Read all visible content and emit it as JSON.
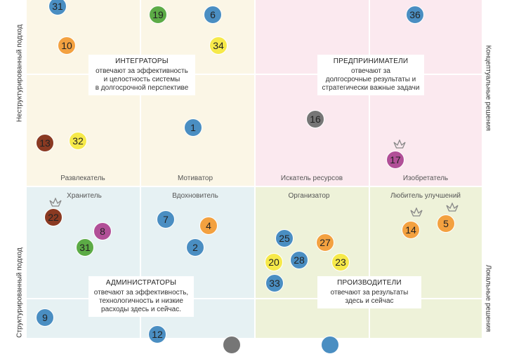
{
  "axes": {
    "top_left": "Неструктурированный подход",
    "bottom_left": "Структурированный подход",
    "top_right": "Концептуальные решения",
    "bottom_right": "Локальные решения"
  },
  "quadrants": {
    "integrators": {
      "title": "ИНТЕГРАТОРЫ",
      "line1": "отвечают за эффективность",
      "line2": "и целостность системы",
      "line3": "в долгосрочной перспективе",
      "sub_left": "Развлекатель",
      "sub_right": "Мотиватор"
    },
    "entrepreneurs": {
      "title": "ПРЕДПРИНИМАТЕЛИ",
      "line1": "отвечают за",
      "line2": "долгосрочные результаты и",
      "line3": "стратегически важные задачи",
      "sub_left": "Искатель ресурсов",
      "sub_right": "Изобретатель"
    },
    "administrators": {
      "title": "АДМИНИСТРАТОРЫ",
      "line1": "отвечают за эффективность,",
      "line2": "технологичность и низкие",
      "line3": "расходы здесь и сейчас.",
      "sub_left": "Хранитель",
      "sub_right": "Вдохновитель"
    },
    "producers": {
      "title": "ПРОИЗВОДИТЕЛИ",
      "line1": "отвечают за результаты",
      "line2": "здесь и сейчас",
      "sub_left": "Организатор",
      "sub_right": "Любитель улучшений"
    }
  },
  "colors": {
    "blue": "#4a8ec2",
    "orange": "#f3a140",
    "green": "#5cab46",
    "yellow": "#f6e94a",
    "purple": "#b14f97",
    "brown": "#8a3a22",
    "gray": "#767676"
  },
  "dots": [
    {
      "label": "31",
      "color": "blue"
    },
    {
      "label": "19",
      "color": "green"
    },
    {
      "label": "6",
      "color": "blue"
    },
    {
      "label": "10",
      "color": "orange"
    },
    {
      "label": "34",
      "color": "yellow"
    },
    {
      "label": "1",
      "color": "blue"
    },
    {
      "label": "13",
      "color": "brown"
    },
    {
      "label": "32",
      "color": "yellow"
    },
    {
      "label": "36",
      "color": "blue"
    },
    {
      "label": "16",
      "color": "gray"
    },
    {
      "label": "17",
      "color": "purple"
    },
    {
      "label": "22",
      "color": "brown"
    },
    {
      "label": "8",
      "color": "purple"
    },
    {
      "label": "31",
      "color": "green"
    },
    {
      "label": "7",
      "color": "blue"
    },
    {
      "label": "4",
      "color": "orange"
    },
    {
      "label": "2",
      "color": "blue"
    },
    {
      "label": "9",
      "color": "blue"
    },
    {
      "label": "12",
      "color": "blue"
    },
    {
      "label": "25",
      "color": "blue"
    },
    {
      "label": "27",
      "color": "orange"
    },
    {
      "label": "20",
      "color": "yellow"
    },
    {
      "label": "28",
      "color": "blue"
    },
    {
      "label": "23",
      "color": "yellow"
    },
    {
      "label": "33",
      "color": "blue"
    },
    {
      "label": "14",
      "color": "orange"
    },
    {
      "label": "5",
      "color": "orange"
    }
  ]
}
